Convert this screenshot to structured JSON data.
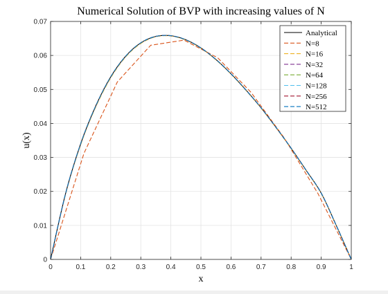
{
  "chart_data": {
    "type": "line",
    "title": "Numerical Solution of BVP with increasing values of N",
    "xlabel": "x",
    "ylabel": "u(x)",
    "xlim": [
      0,
      1
    ],
    "ylim": [
      0,
      0.07
    ],
    "xticks": [
      0,
      0.1,
      0.2,
      0.3,
      0.4,
      0.5,
      0.6,
      0.7,
      0.8,
      0.9,
      1
    ],
    "xtick_labels": [
      "0",
      "0.1",
      "0.2",
      "0.3",
      "0.4",
      "0.5",
      "0.6",
      "0.7",
      "0.8",
      "0.9",
      "1"
    ],
    "yticks": [
      0,
      0.01,
      0.02,
      0.03,
      0.04,
      0.05,
      0.06,
      0.07
    ],
    "ytick_labels": [
      "0",
      "0.01",
      "0.02",
      "0.03",
      "0.04",
      "0.05",
      "0.06",
      "0.07"
    ],
    "grid": true,
    "legend_position": "top-right",
    "series": [
      {
        "name": "Analytical",
        "color": "#000000",
        "style": "solid",
        "x": [
          0,
          0.05,
          0.1,
          0.15,
          0.2,
          0.25,
          0.3,
          0.35,
          0.4,
          0.45,
          0.5,
          0.55,
          0.6,
          0.65,
          0.7,
          0.75,
          0.8,
          0.85,
          0.9,
          0.95,
          1
        ],
        "y": [
          0,
          0.0194,
          0.034,
          0.0451,
          0.0537,
          0.0598,
          0.0637,
          0.0656,
          0.0658,
          0.0646,
          0.0622,
          0.0588,
          0.0546,
          0.0498,
          0.0446,
          0.0388,
          0.0327,
          0.0262,
          0.0195,
          0.01,
          0
        ]
      },
      {
        "name": "N=8",
        "color": "#d95319",
        "style": "dashed",
        "x": [
          0,
          0.111,
          0.222,
          0.333,
          0.444,
          0.556,
          0.667,
          0.778,
          0.889,
          1
        ],
        "y": [
          0,
          0.0312,
          0.0522,
          0.063,
          0.0645,
          0.0593,
          0.0491,
          0.0356,
          0.0194,
          0
        ]
      },
      {
        "name": "N=16",
        "color": "#edb120",
        "style": "dashed",
        "x": [
          0,
          0.05,
          0.1,
          0.15,
          0.2,
          0.25,
          0.3,
          0.35,
          0.4,
          0.45,
          0.5,
          0.55,
          0.6,
          0.65,
          0.7,
          0.75,
          0.8,
          0.85,
          0.9,
          0.95,
          1
        ],
        "y": [
          0,
          0.0192,
          0.0337,
          0.0448,
          0.0534,
          0.0596,
          0.0635,
          0.0655,
          0.0657,
          0.0645,
          0.0621,
          0.0587,
          0.0545,
          0.0497,
          0.0445,
          0.0387,
          0.0326,
          0.0261,
          0.0194,
          0.01,
          0
        ]
      },
      {
        "name": "N=32",
        "color": "#7e2f8e",
        "style": "dashed",
        "x": [
          0,
          0.05,
          0.1,
          0.15,
          0.2,
          0.25,
          0.3,
          0.35,
          0.4,
          0.45,
          0.5,
          0.55,
          0.6,
          0.65,
          0.7,
          0.75,
          0.8,
          0.85,
          0.9,
          0.95,
          1
        ],
        "y": [
          0,
          0.0194,
          0.034,
          0.0451,
          0.0537,
          0.0598,
          0.0637,
          0.0656,
          0.0658,
          0.0646,
          0.0622,
          0.0588,
          0.0546,
          0.0498,
          0.0446,
          0.0388,
          0.0327,
          0.0262,
          0.0195,
          0.01,
          0
        ]
      },
      {
        "name": "N=64",
        "color": "#77ac30",
        "style": "dashed",
        "x": [
          0,
          0.05,
          0.1,
          0.15,
          0.2,
          0.25,
          0.3,
          0.35,
          0.4,
          0.45,
          0.5,
          0.55,
          0.6,
          0.65,
          0.7,
          0.75,
          0.8,
          0.85,
          0.9,
          0.95,
          1
        ],
        "y": [
          0,
          0.0194,
          0.034,
          0.0451,
          0.0537,
          0.0598,
          0.0637,
          0.0656,
          0.0658,
          0.0646,
          0.0622,
          0.0588,
          0.0546,
          0.0498,
          0.0446,
          0.0388,
          0.0327,
          0.0262,
          0.0195,
          0.01,
          0
        ]
      },
      {
        "name": "N=128",
        "color": "#4dbeee",
        "style": "dashed",
        "x": [
          0,
          0.05,
          0.1,
          0.15,
          0.2,
          0.25,
          0.3,
          0.35,
          0.4,
          0.45,
          0.5,
          0.55,
          0.6,
          0.65,
          0.7,
          0.75,
          0.8,
          0.85,
          0.9,
          0.95,
          1
        ],
        "y": [
          0,
          0.0194,
          0.034,
          0.0451,
          0.0537,
          0.0598,
          0.0637,
          0.0656,
          0.0658,
          0.0646,
          0.0622,
          0.0588,
          0.0546,
          0.0498,
          0.0446,
          0.0388,
          0.0327,
          0.0262,
          0.0195,
          0.01,
          0
        ]
      },
      {
        "name": "N=256",
        "color": "#a2142f",
        "style": "dashed",
        "x": [
          0,
          0.05,
          0.1,
          0.15,
          0.2,
          0.25,
          0.3,
          0.35,
          0.4,
          0.45,
          0.5,
          0.55,
          0.6,
          0.65,
          0.7,
          0.75,
          0.8,
          0.85,
          0.9,
          0.95,
          1
        ],
        "y": [
          0,
          0.0194,
          0.034,
          0.0451,
          0.0537,
          0.0598,
          0.0637,
          0.0656,
          0.0658,
          0.0646,
          0.0622,
          0.0588,
          0.0546,
          0.0498,
          0.0446,
          0.0388,
          0.0327,
          0.0262,
          0.0195,
          0.01,
          0
        ]
      },
      {
        "name": "N=512",
        "color": "#0072bd",
        "style": "dashed",
        "x": [
          0,
          0.05,
          0.1,
          0.15,
          0.2,
          0.25,
          0.3,
          0.35,
          0.4,
          0.45,
          0.5,
          0.55,
          0.6,
          0.65,
          0.7,
          0.75,
          0.8,
          0.85,
          0.9,
          0.95,
          1
        ],
        "y": [
          0,
          0.0194,
          0.034,
          0.0451,
          0.0537,
          0.0598,
          0.0637,
          0.0656,
          0.0658,
          0.0646,
          0.0622,
          0.0588,
          0.0546,
          0.0498,
          0.0446,
          0.0388,
          0.0327,
          0.0262,
          0.0195,
          0.01,
          0
        ]
      }
    ]
  }
}
